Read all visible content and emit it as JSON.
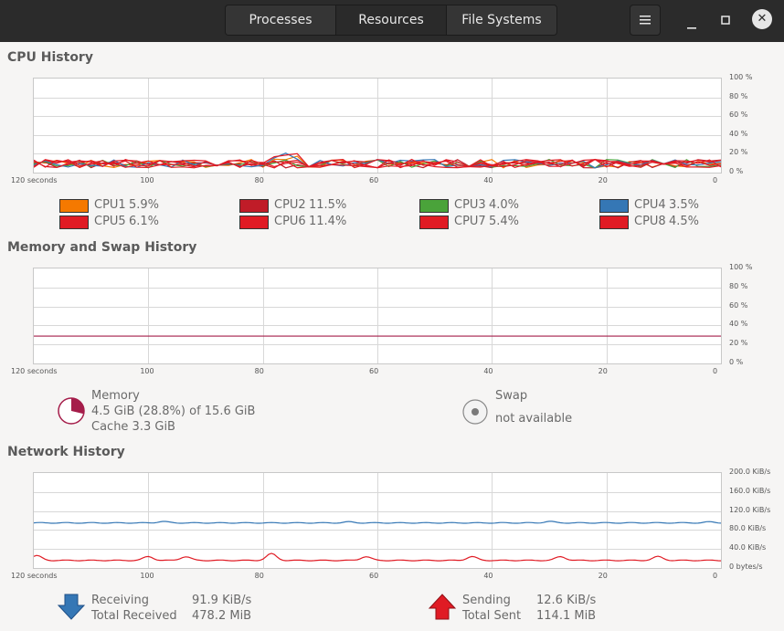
{
  "tabs": [
    {
      "label": "Processes"
    },
    {
      "label": "Resources"
    },
    {
      "label": "File Systems"
    }
  ],
  "window": {
    "menu_icon": "hamburger-menu-icon",
    "minimize_icon": "minimize-icon",
    "maximize_icon": "maximize-icon",
    "close_icon": "close-icon"
  },
  "cpu": {
    "title": "CPU History",
    "y_ticks": [
      "100 %",
      "80 %",
      "60 %",
      "40 %",
      "20 %",
      "0 %"
    ],
    "x_ticks": [
      "120 seconds",
      "100",
      "80",
      "60",
      "40",
      "20",
      "0"
    ],
    "legend": [
      {
        "name": "CPU1",
        "value": "5.9%",
        "color": "#f57900"
      },
      {
        "name": "CPU2",
        "value": "11.5%",
        "color": "#c01c28"
      },
      {
        "name": "CPU3",
        "value": "4.0%",
        "color": "#4aa33a"
      },
      {
        "name": "CPU4",
        "value": "3.5%",
        "color": "#3577b5"
      },
      {
        "name": "CPU5",
        "value": "6.1%",
        "color": "#e01b24"
      },
      {
        "name": "CPU6",
        "value": "11.4%",
        "color": "#e01b24"
      },
      {
        "name": "CPU7",
        "value": "5.4%",
        "color": "#e01b24"
      },
      {
        "name": "CPU8",
        "value": "4.5%",
        "color": "#e01b24"
      }
    ]
  },
  "memory": {
    "title": "Memory and Swap History",
    "y_ticks": [
      "100 %",
      "80 %",
      "60 %",
      "40 %",
      "20 %",
      "0 %"
    ],
    "x_ticks": [
      "120 seconds",
      "100",
      "80",
      "60",
      "40",
      "20",
      "0"
    ],
    "memory_label": "Memory",
    "memory_used": "4.5 GiB (28.8%) of 15.6 GiB",
    "memory_cache": "Cache 3.3 GiB",
    "memory_fraction": 0.288,
    "memory_color": "#a51d4a",
    "swap_label": "Swap",
    "swap_status": "not available"
  },
  "network": {
    "title": "Network History",
    "y_ticks": [
      "200.0 KiB/s",
      "160.0 KiB/s",
      "120.0 KiB/s",
      "80.0 KiB/s",
      "40.0 KiB/s",
      "0 bytes/s"
    ],
    "x_ticks": [
      "120 seconds",
      "100",
      "80",
      "60",
      "40",
      "20",
      "0"
    ],
    "receiving_label": "Receiving",
    "receiving_value": "91.9 KiB/s",
    "total_received_label": "Total Received",
    "total_received_value": "478.2 MiB",
    "sending_label": "Sending",
    "sending_value": "12.6 KiB/s",
    "total_sent_label": "Total Sent",
    "total_sent_value": "114.1 MiB",
    "receiving_color": "#3577b5",
    "sending_color": "#e01b24"
  }
}
